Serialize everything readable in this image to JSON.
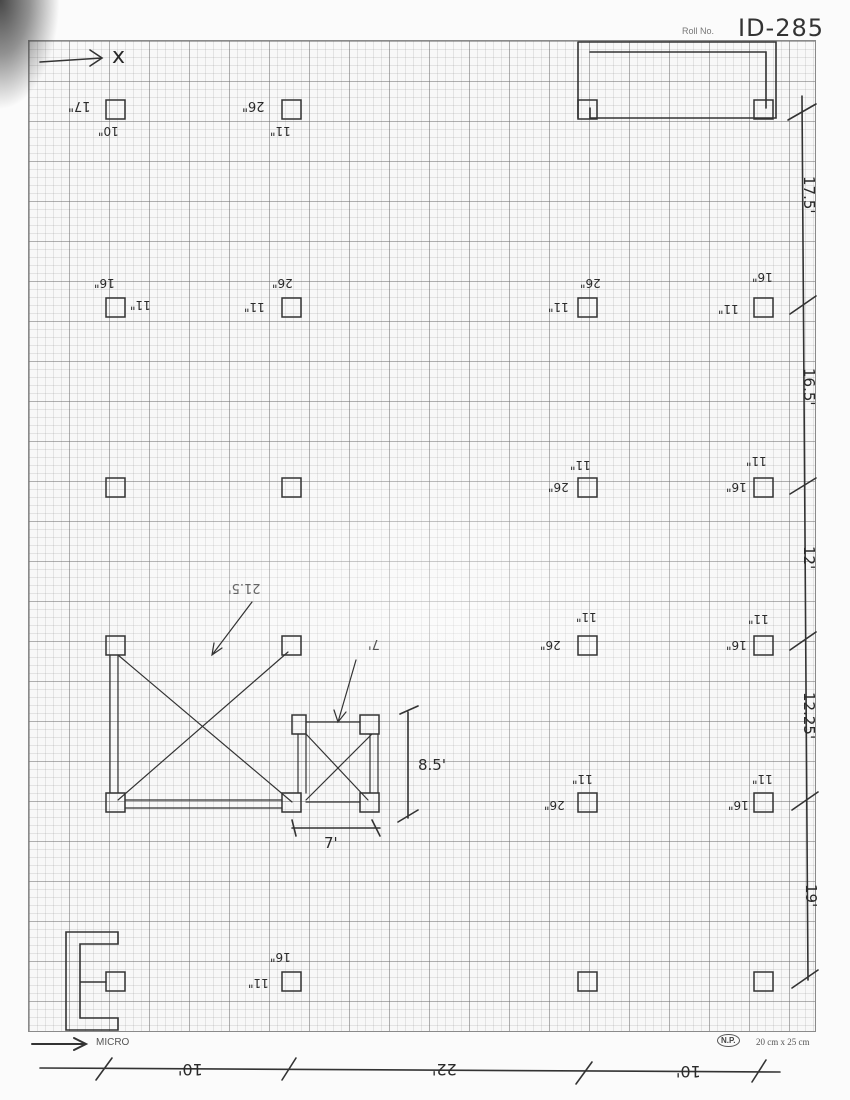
{
  "header": {
    "roll_label": "Roll No.",
    "roll_value": "ID-285"
  },
  "axis_label": "x",
  "footer": {
    "brand": "MICRO",
    "np": "N.P.",
    "size": "20 cm x 25 cm"
  },
  "dims_right": [
    "17.5'",
    "16.5'",
    "12'",
    "12.25'",
    "19'"
  ],
  "dims_bottom": [
    "10'",
    "22'",
    "10'"
  ],
  "staircase": {
    "height": "8.5'",
    "width": "7'",
    "label_a": "21.5'",
    "label_b": "7'"
  },
  "column_labels": {
    "r1c1_a": "17\"",
    "r1c1_b": "10\"",
    "r1c2_a": "26\"",
    "r1c2_b": "11\"",
    "r2c1_a": "16\"",
    "r2c1_b": "11\"",
    "r2c2_a": "26\"",
    "r2c2_b": "11\"",
    "r2c3_a": "26\"",
    "r2c3_b": "11\"",
    "r2c4_a": "16\"",
    "r2c4_b": "11\"",
    "r3c3_a": "26\"",
    "r3c3_b": "11\"",
    "r3c4_a": "16\"",
    "r3c4_b": "11\"",
    "r4c3_a": "26\"",
    "r4c3_b": "11\"",
    "r4c4_a": "16\"",
    "r4c4_b": "11\"",
    "r5c3_a": "26\"",
    "r5c3_b": "11\"",
    "r5c4_a": "16\"",
    "r5c4_b": "11\"",
    "r6c2_a": "16\"",
    "r6c2_b": "11\""
  }
}
